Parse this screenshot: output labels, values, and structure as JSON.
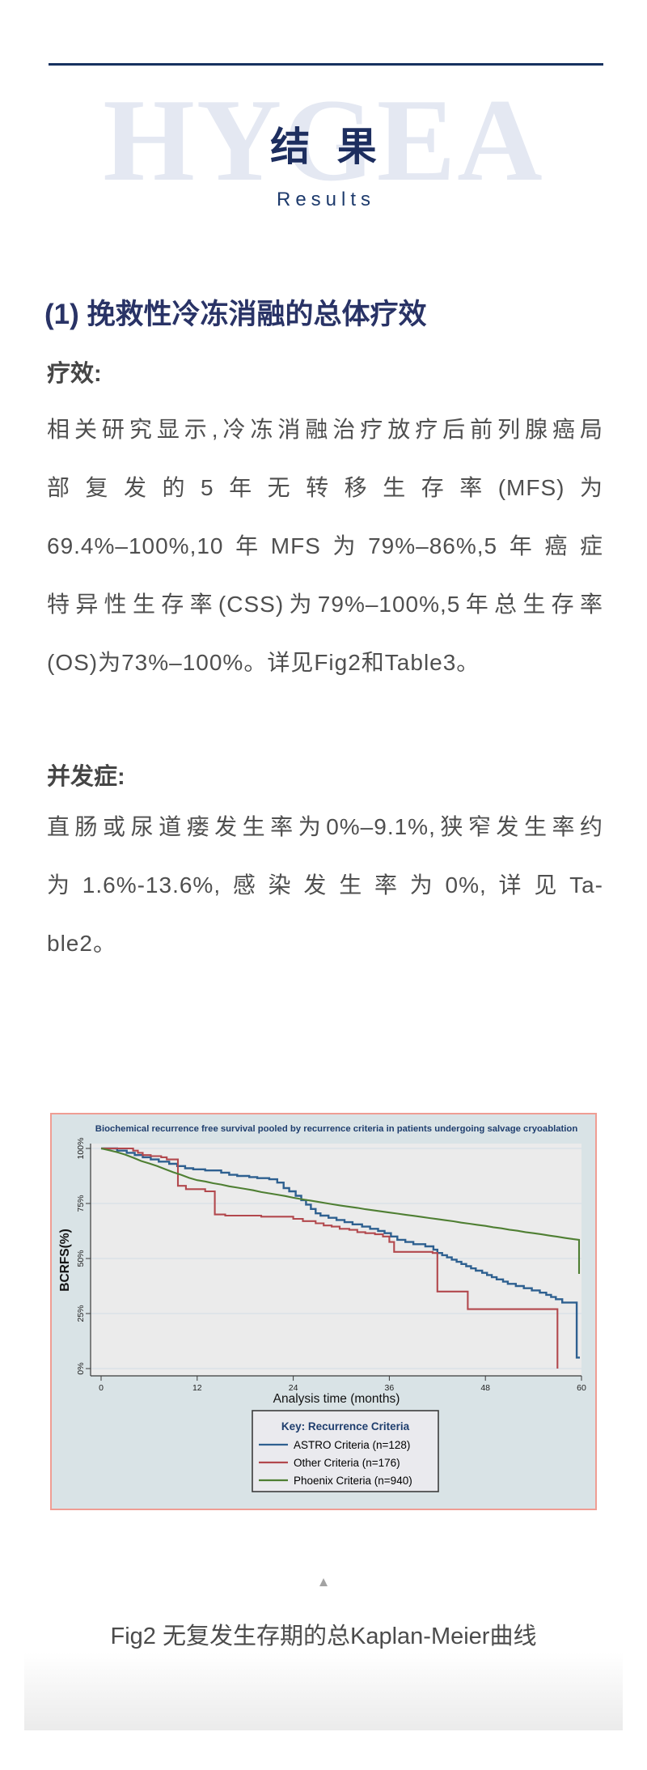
{
  "header": {
    "watermark": "HYGEA",
    "title_cn": "结 果",
    "title_en": "Results"
  },
  "section": {
    "heading": "(1) 挽救性冷冻消融的总体疗效",
    "efficacy": {
      "label": "疗效:",
      "lines": [
        "相关研究显示,冷冻消融治疗放疗后前列腺癌局",
        "部复发的5年无转移生存率(MFS)为",
        "69.4%–100%,10年MFS为79%–86%,5年癌症",
        "特异性生存率(CSS)为79%–100%,5年总生存率",
        "(OS)为73%–100%。详见Fig2和Table3。"
      ]
    },
    "complications": {
      "label": "并发症:",
      "lines": [
        "直肠或尿道瘘发生率为0%–9.1%,狭窄发生率约",
        "为1.6%-13.6%,感染发生率为0%,详见Ta-",
        "ble2。"
      ]
    }
  },
  "figure": {
    "collapse_icon": "▲",
    "caption": "Fig2 无复发生存期的总Kaplan-Meier曲线"
  },
  "chart_data": {
    "type": "line",
    "subtype": "kaplan-meier-step",
    "title": "Biochemical recurrence free survival pooled by recurrence criteria in patients undergoing salvage cryoablation",
    "xlabel": "Analysis time (months)",
    "ylabel": "BCRFS(%)",
    "xlim": [
      0,
      60
    ],
    "ylim": [
      0,
      100
    ],
    "xticks": [
      0,
      12,
      24,
      36,
      48,
      60
    ],
    "yticks": [
      0,
      25,
      50,
      75,
      100
    ],
    "ytick_labels": [
      "0%",
      "25%",
      "50%",
      "75%",
      "100%"
    ],
    "grid": true,
    "legend_position": "below",
    "legend_title": "Key: Recurrence Criteria",
    "colors": {
      "panel_bg": "#d9e3e6",
      "plot_bg": "#ebebeb",
      "grid": "#d9e2e7",
      "border": "#ef9d93",
      "title": "#1f3e6e",
      "axis": "#3a3a3a",
      "tick_text": "#222222",
      "legend_bg": "#eaeaee",
      "legend_border": "#3c3c3c"
    },
    "series": [
      {
        "name": "ASTRO Criteria (n=128)",
        "color": "#2e6090",
        "width": 2.4,
        "step": true,
        "points": [
          [
            0,
            100
          ],
          [
            2,
            100
          ],
          [
            2,
            99
          ],
          [
            3.2,
            99
          ],
          [
            3.2,
            98
          ],
          [
            4.2,
            98
          ],
          [
            4.2,
            97
          ],
          [
            5.2,
            97
          ],
          [
            5.2,
            96
          ],
          [
            6.2,
            96
          ],
          [
            6.2,
            95
          ],
          [
            7.2,
            95
          ],
          [
            7.2,
            94
          ],
          [
            8.5,
            94
          ],
          [
            8.5,
            93
          ],
          [
            9.5,
            93
          ],
          [
            9.5,
            92
          ],
          [
            10.5,
            92
          ],
          [
            10.5,
            91
          ],
          [
            11.5,
            91
          ],
          [
            11.5,
            90.5
          ],
          [
            13,
            90.5
          ],
          [
            13,
            90
          ],
          [
            15,
            90
          ],
          [
            15,
            89
          ],
          [
            16,
            89
          ],
          [
            16,
            88
          ],
          [
            17,
            88
          ],
          [
            17,
            87.5
          ],
          [
            18.5,
            87.5
          ],
          [
            18.5,
            87
          ],
          [
            19.5,
            87
          ],
          [
            19.5,
            86.5
          ],
          [
            21,
            86.5
          ],
          [
            21,
            86
          ],
          [
            22,
            86
          ],
          [
            22,
            84.5
          ],
          [
            22.8,
            84.5
          ],
          [
            22.8,
            82
          ],
          [
            23.5,
            82
          ],
          [
            23.5,
            80.5
          ],
          [
            24.3,
            80.5
          ],
          [
            24.3,
            78.5
          ],
          [
            25,
            78.5
          ],
          [
            25,
            76.5
          ],
          [
            25.6,
            76.5
          ],
          [
            25.6,
            74.5
          ],
          [
            26.2,
            74.5
          ],
          [
            26.2,
            72.5
          ],
          [
            26.8,
            72.5
          ],
          [
            26.8,
            70.5
          ],
          [
            27.4,
            70.5
          ],
          [
            27.4,
            69.5
          ],
          [
            28.4,
            69.5
          ],
          [
            28.4,
            68.5
          ],
          [
            29.4,
            68.5
          ],
          [
            29.4,
            67.5
          ],
          [
            30.4,
            67.5
          ],
          [
            30.4,
            66.5
          ],
          [
            31.4,
            66.5
          ],
          [
            31.4,
            65.5
          ],
          [
            32.6,
            65.5
          ],
          [
            32.6,
            64.5
          ],
          [
            33.6,
            64.5
          ],
          [
            33.6,
            63.5
          ],
          [
            34.6,
            63.5
          ],
          [
            34.6,
            62.5
          ],
          [
            35.4,
            62.5
          ],
          [
            35.4,
            61.5
          ],
          [
            36.2,
            61.5
          ],
          [
            36.2,
            60
          ],
          [
            37,
            60
          ],
          [
            37,
            58.5
          ],
          [
            38,
            58.5
          ],
          [
            38,
            57.5
          ],
          [
            39,
            57.5
          ],
          [
            39,
            56.5
          ],
          [
            40.5,
            56.5
          ],
          [
            40.5,
            55.5
          ],
          [
            41.5,
            55.5
          ],
          [
            41.5,
            54
          ],
          [
            42,
            54
          ],
          [
            42,
            52.5
          ],
          [
            42.6,
            52.5
          ],
          [
            42.6,
            51.5
          ],
          [
            43.2,
            51.5
          ],
          [
            43.2,
            50.5
          ],
          [
            43.8,
            50.5
          ],
          [
            43.8,
            49.5
          ],
          [
            44.4,
            49.5
          ],
          [
            44.4,
            48.5
          ],
          [
            45,
            48.5
          ],
          [
            45,
            47.5
          ],
          [
            45.6,
            47.5
          ],
          [
            45.6,
            46.5
          ],
          [
            46.2,
            46.5
          ],
          [
            46.2,
            45.5
          ],
          [
            46.8,
            45.5
          ],
          [
            46.8,
            44.5
          ],
          [
            47.6,
            44.5
          ],
          [
            47.6,
            43.5
          ],
          [
            48.2,
            43.5
          ],
          [
            48.2,
            42.5
          ],
          [
            48.8,
            42.5
          ],
          [
            48.8,
            41.5
          ],
          [
            49.4,
            41.5
          ],
          [
            49.4,
            40.5
          ],
          [
            50.2,
            40.5
          ],
          [
            50.2,
            39.5
          ],
          [
            50.8,
            39.5
          ],
          [
            50.8,
            38.5
          ],
          [
            51.8,
            38.5
          ],
          [
            51.8,
            37.5
          ],
          [
            52.8,
            37.5
          ],
          [
            52.8,
            36.5
          ],
          [
            53.8,
            36.5
          ],
          [
            53.8,
            35.5
          ],
          [
            54.8,
            35.5
          ],
          [
            54.8,
            34.5
          ],
          [
            55.6,
            34.5
          ],
          [
            55.6,
            33.5
          ],
          [
            56.2,
            33.5
          ],
          [
            56.2,
            32.5
          ],
          [
            56.8,
            32.5
          ],
          [
            56.8,
            31.5
          ],
          [
            57.6,
            31.5
          ],
          [
            57.6,
            30
          ],
          [
            59.4,
            30
          ],
          [
            59.4,
            5
          ],
          [
            59.8,
            5
          ]
        ]
      },
      {
        "name": "Other Criteria (n=176)",
        "color": "#b2484d",
        "width": 2.1,
        "step": true,
        "points": [
          [
            0,
            100
          ],
          [
            4,
            100
          ],
          [
            4,
            99
          ],
          [
            4.6,
            99
          ],
          [
            4.6,
            98
          ],
          [
            5.2,
            98
          ],
          [
            5.2,
            97
          ],
          [
            6.2,
            97
          ],
          [
            6.2,
            96.5
          ],
          [
            7.5,
            96.5
          ],
          [
            7.5,
            96
          ],
          [
            8.2,
            96
          ],
          [
            8.2,
            95
          ],
          [
            9.6,
            95
          ],
          [
            9.6,
            83
          ],
          [
            10.6,
            83
          ],
          [
            10.6,
            81.5
          ],
          [
            13,
            81.5
          ],
          [
            13,
            80.5
          ],
          [
            14.2,
            80.5
          ],
          [
            14.2,
            70
          ],
          [
            15.5,
            70
          ],
          [
            15.5,
            69.5
          ],
          [
            20,
            69.5
          ],
          [
            20,
            69
          ],
          [
            24,
            69
          ],
          [
            24,
            68
          ],
          [
            25.2,
            68
          ],
          [
            25.2,
            67
          ],
          [
            26.8,
            67
          ],
          [
            26.8,
            66
          ],
          [
            27.8,
            66
          ],
          [
            27.8,
            65
          ],
          [
            28.8,
            65
          ],
          [
            28.8,
            64.5
          ],
          [
            29.8,
            64.5
          ],
          [
            29.8,
            63.5
          ],
          [
            31,
            63.5
          ],
          [
            31,
            63
          ],
          [
            32,
            63
          ],
          [
            32,
            62
          ],
          [
            33,
            62
          ],
          [
            33,
            61.5
          ],
          [
            34.2,
            61.5
          ],
          [
            34.2,
            61
          ],
          [
            35.2,
            61
          ],
          [
            35.2,
            60
          ],
          [
            36,
            60
          ],
          [
            36,
            57.5
          ],
          [
            36.6,
            57.5
          ],
          [
            36.6,
            53
          ],
          [
            41.4,
            53
          ],
          [
            41.4,
            52.5
          ],
          [
            42,
            52.5
          ],
          [
            42,
            35
          ],
          [
            45.8,
            35
          ],
          [
            45.8,
            27
          ],
          [
            57,
            27
          ],
          [
            57,
            0
          ]
        ]
      },
      {
        "name": "Phoenix Criteria (n=940)",
        "color": "#4f7f33",
        "width": 2.1,
        "step": false,
        "points": [
          [
            0,
            100
          ],
          [
            1,
            99.2
          ],
          [
            2,
            98.3
          ],
          [
            3,
            97.2
          ],
          [
            4,
            95.8
          ],
          [
            5,
            94.3
          ],
          [
            6,
            93.2
          ],
          [
            7,
            92
          ],
          [
            8,
            90.6
          ],
          [
            9,
            89.2
          ],
          [
            10,
            88
          ],
          [
            11,
            86.6
          ],
          [
            12,
            85.6
          ],
          [
            13,
            85
          ],
          [
            14,
            84.2
          ],
          [
            15,
            83.6
          ],
          [
            16,
            82.8
          ],
          [
            17,
            82.2
          ],
          [
            18,
            81.6
          ],
          [
            19,
            81
          ],
          [
            20,
            80.2
          ],
          [
            21,
            79.6
          ],
          [
            22,
            79
          ],
          [
            23,
            78.4
          ],
          [
            24,
            77.6
          ],
          [
            25,
            77
          ],
          [
            26,
            76.4
          ],
          [
            27,
            75.8
          ],
          [
            28,
            75.2
          ],
          [
            29,
            74.6
          ],
          [
            30,
            74
          ],
          [
            31,
            73.5
          ],
          [
            32,
            73
          ],
          [
            33,
            72.4
          ],
          [
            34,
            71.9
          ],
          [
            35,
            71.4
          ],
          [
            36,
            70.9
          ],
          [
            37,
            70.4
          ],
          [
            38,
            69.9
          ],
          [
            39,
            69.4
          ],
          [
            40,
            68.9
          ],
          [
            41,
            68.4
          ],
          [
            42,
            67.9
          ],
          [
            43,
            67.4
          ],
          [
            44,
            66.9
          ],
          [
            45,
            66.3
          ],
          [
            46,
            65.8
          ],
          [
            47,
            65.3
          ],
          [
            48,
            64.8
          ],
          [
            49,
            64.2
          ],
          [
            50,
            63.7
          ],
          [
            51,
            63.1
          ],
          [
            52,
            62.6
          ],
          [
            53,
            62
          ],
          [
            54,
            61.5
          ],
          [
            55,
            61
          ],
          [
            56,
            60.4
          ],
          [
            57,
            59.9
          ],
          [
            58,
            59.3
          ],
          [
            59,
            58.8
          ],
          [
            59.7,
            58.5
          ],
          [
            59.7,
            43
          ]
        ]
      }
    ]
  }
}
